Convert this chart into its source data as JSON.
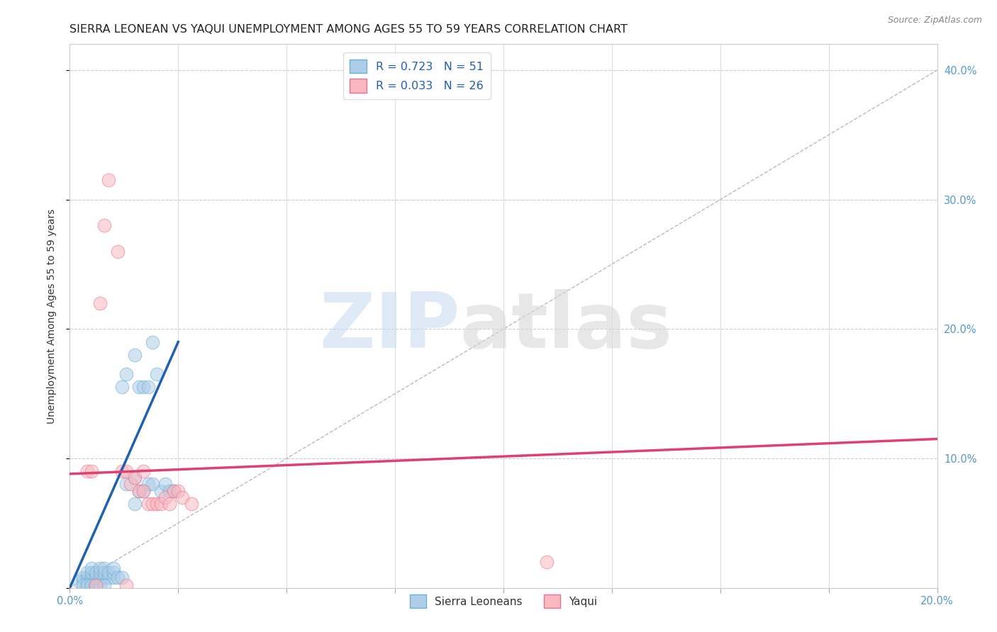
{
  "title": "SIERRA LEONEAN VS YAQUI UNEMPLOYMENT AMONG AGES 55 TO 59 YEARS CORRELATION CHART",
  "source": "Source: ZipAtlas.com",
  "ylabel": "Unemployment Among Ages 55 to 59 years",
  "xlim": [
    0.0,
    0.2
  ],
  "ylim": [
    0.0,
    0.42
  ],
  "xticks": [
    0.0,
    0.025,
    0.05,
    0.075,
    0.1,
    0.125,
    0.15,
    0.175,
    0.2
  ],
  "yticks": [
    0.0,
    0.1,
    0.2,
    0.3,
    0.4
  ],
  "legend1_label": "R = 0.723   N = 51",
  "legend2_label": "R = 0.033   N = 26",
  "legend_bottom_label1": "Sierra Leoneans",
  "legend_bottom_label2": "Yaqui",
  "blue_color": "#aecde8",
  "blue_edge": "#6aafd6",
  "pink_color": "#f9b8c0",
  "pink_edge": "#e87090",
  "blue_scatter": [
    [
      0.002,
      0.005
    ],
    [
      0.003,
      0.005
    ],
    [
      0.003,
      0.008
    ],
    [
      0.004,
      0.005
    ],
    [
      0.004,
      0.008
    ],
    [
      0.004,
      0.012
    ],
    [
      0.005,
      0.005
    ],
    [
      0.005,
      0.008
    ],
    [
      0.005,
      0.012
    ],
    [
      0.005,
      0.015
    ],
    [
      0.006,
      0.005
    ],
    [
      0.006,
      0.008
    ],
    [
      0.006,
      0.012
    ],
    [
      0.007,
      0.008
    ],
    [
      0.007,
      0.012
    ],
    [
      0.007,
      0.015
    ],
    [
      0.008,
      0.008
    ],
    [
      0.008,
      0.012
    ],
    [
      0.008,
      0.015
    ],
    [
      0.009,
      0.008
    ],
    [
      0.009,
      0.012
    ],
    [
      0.01,
      0.008
    ],
    [
      0.01,
      0.012
    ],
    [
      0.01,
      0.015
    ],
    [
      0.011,
      0.008
    ],
    [
      0.012,
      0.008
    ],
    [
      0.012,
      0.155
    ],
    [
      0.013,
      0.165
    ],
    [
      0.013,
      0.08
    ],
    [
      0.015,
      0.18
    ],
    [
      0.015,
      0.085
    ],
    [
      0.015,
      0.065
    ],
    [
      0.016,
      0.155
    ],
    [
      0.016,
      0.075
    ],
    [
      0.017,
      0.155
    ],
    [
      0.017,
      0.075
    ],
    [
      0.018,
      0.08
    ],
    [
      0.018,
      0.155
    ],
    [
      0.019,
      0.19
    ],
    [
      0.019,
      0.08
    ],
    [
      0.02,
      0.165
    ],
    [
      0.021,
      0.075
    ],
    [
      0.022,
      0.08
    ],
    [
      0.023,
      0.075
    ],
    [
      0.024,
      0.075
    ],
    [
      0.003,
      0.002
    ],
    [
      0.004,
      0.002
    ],
    [
      0.005,
      0.002
    ],
    [
      0.006,
      0.002
    ],
    [
      0.007,
      0.002
    ],
    [
      0.008,
      0.002
    ]
  ],
  "pink_scatter": [
    [
      0.004,
      0.09
    ],
    [
      0.005,
      0.09
    ],
    [
      0.007,
      0.22
    ],
    [
      0.008,
      0.28
    ],
    [
      0.009,
      0.315
    ],
    [
      0.011,
      0.26
    ],
    [
      0.012,
      0.09
    ],
    [
      0.013,
      0.09
    ],
    [
      0.014,
      0.08
    ],
    [
      0.015,
      0.085
    ],
    [
      0.016,
      0.075
    ],
    [
      0.017,
      0.075
    ],
    [
      0.017,
      0.09
    ],
    [
      0.018,
      0.065
    ],
    [
      0.019,
      0.065
    ],
    [
      0.02,
      0.065
    ],
    [
      0.021,
      0.065
    ],
    [
      0.022,
      0.07
    ],
    [
      0.023,
      0.065
    ],
    [
      0.024,
      0.075
    ],
    [
      0.025,
      0.075
    ],
    [
      0.026,
      0.07
    ],
    [
      0.028,
      0.065
    ],
    [
      0.006,
      0.002
    ],
    [
      0.11,
      0.02
    ],
    [
      0.013,
      0.002
    ]
  ],
  "blue_line_x": [
    0.0,
    0.025
  ],
  "blue_line_y": [
    0.0,
    0.19
  ],
  "pink_line_x": [
    0.0,
    0.2
  ],
  "pink_line_y": [
    0.088,
    0.115
  ],
  "diag_line": [
    [
      0.0,
      0.0
    ],
    [
      0.2,
      0.4
    ]
  ],
  "watermark_zip": "ZIP",
  "watermark_atlas": "atlas",
  "background_color": "#ffffff",
  "grid_color": "#cccccc",
  "title_fontsize": 11.5,
  "axis_label_fontsize": 10,
  "tick_fontsize": 10.5,
  "scatter_size": 180,
  "scatter_alpha": 0.55
}
